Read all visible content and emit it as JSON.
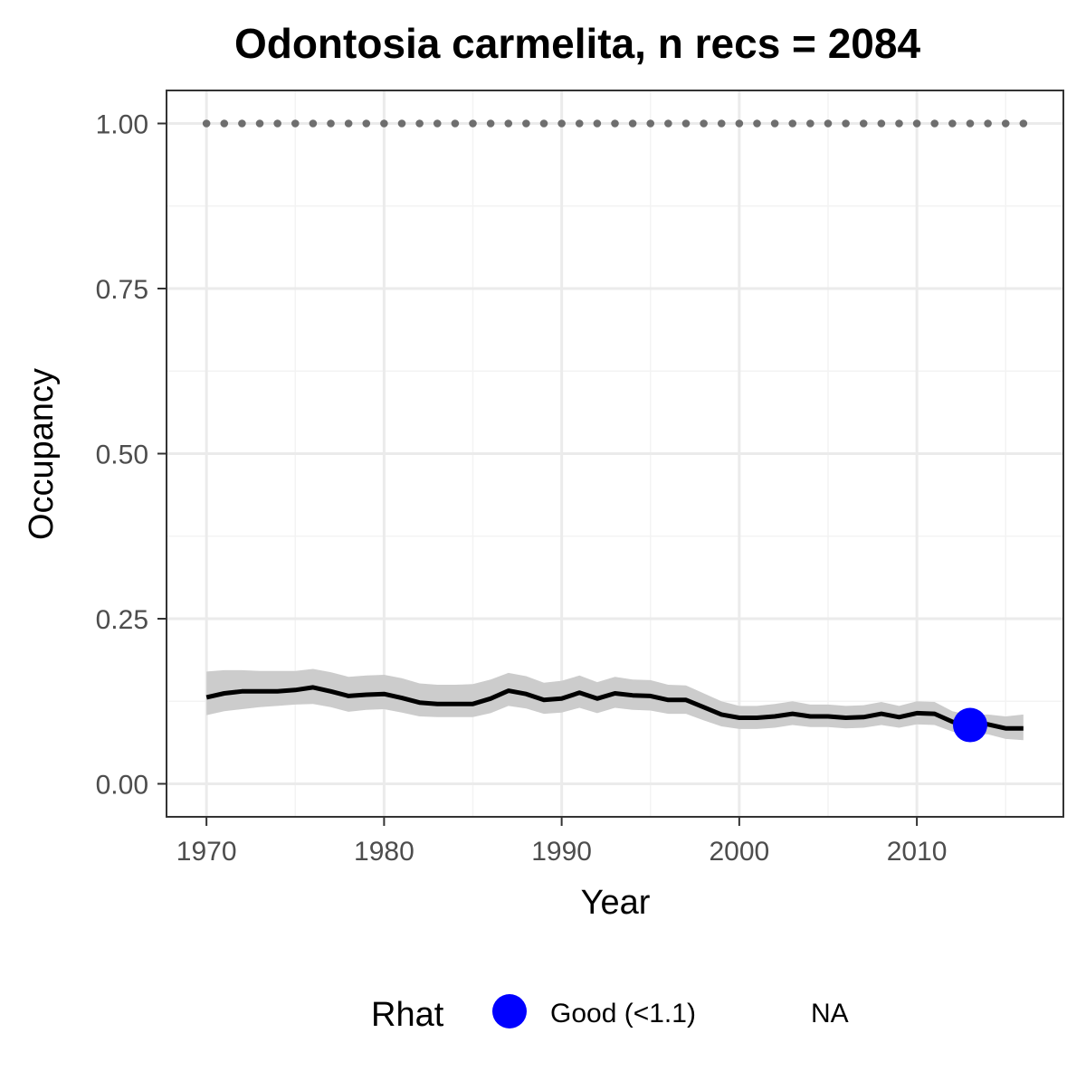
{
  "chart_data": {
    "type": "line",
    "title": "Odontosia carmelita, n recs = 2084",
    "xlabel": "Year",
    "ylabel": "Occupancy",
    "xlim": [
      1967.75,
      2018.25
    ],
    "ylim": [
      -0.05,
      1.05
    ],
    "x_ticks": [
      1970,
      1980,
      1990,
      2000,
      2010
    ],
    "x_tick_labels": [
      "1970",
      "1980",
      "1990",
      "2000",
      "2010"
    ],
    "y_ticks": [
      0,
      0.25,
      0.5,
      0.75,
      1
    ],
    "y_tick_labels": [
      "0.00",
      "0.25",
      "0.50",
      "0.75",
      "1.00"
    ],
    "grid": true,
    "series": [
      {
        "role": "mean-occupancy",
        "color": "#000000",
        "x": [
          1970,
          1971,
          1972,
          1973,
          1974,
          1975,
          1976,
          1977,
          1978,
          1979,
          1980,
          1981,
          1982,
          1983,
          1984,
          1985,
          1986,
          1987,
          1988,
          1989,
          1990,
          1991,
          1992,
          1993,
          1994,
          1995,
          1996,
          1997,
          1998,
          1999,
          2000,
          2001,
          2002,
          2003,
          2004,
          2005,
          2006,
          2007,
          2008,
          2009,
          2010,
          2011,
          2012,
          2013,
          2014,
          2015,
          2016
        ],
        "y": [
          0.131,
          0.137,
          0.14,
          0.14,
          0.14,
          0.142,
          0.146,
          0.14,
          0.133,
          0.135,
          0.136,
          0.13,
          0.123,
          0.121,
          0.121,
          0.121,
          0.129,
          0.141,
          0.136,
          0.127,
          0.129,
          0.138,
          0.129,
          0.137,
          0.134,
          0.133,
          0.127,
          0.127,
          0.116,
          0.105,
          0.1,
          0.1,
          0.102,
          0.106,
          0.102,
          0.102,
          0.1,
          0.101,
          0.106,
          0.101,
          0.107,
          0.106,
          0.094,
          0.089,
          0.09,
          0.084,
          0.084
        ],
        "lower": [
          0.104,
          0.11,
          0.113,
          0.116,
          0.118,
          0.12,
          0.121,
          0.116,
          0.109,
          0.112,
          0.113,
          0.108,
          0.102,
          0.101,
          0.101,
          0.101,
          0.107,
          0.118,
          0.114,
          0.106,
          0.108,
          0.115,
          0.107,
          0.115,
          0.112,
          0.111,
          0.106,
          0.106,
          0.096,
          0.087,
          0.083,
          0.083,
          0.085,
          0.089,
          0.086,
          0.086,
          0.084,
          0.085,
          0.089,
          0.085,
          0.09,
          0.089,
          0.079,
          0.075,
          0.075,
          0.068,
          0.066
        ],
        "upper": [
          0.17,
          0.172,
          0.172,
          0.171,
          0.171,
          0.171,
          0.174,
          0.169,
          0.162,
          0.164,
          0.165,
          0.16,
          0.152,
          0.15,
          0.15,
          0.151,
          0.158,
          0.168,
          0.163,
          0.153,
          0.156,
          0.164,
          0.154,
          0.162,
          0.158,
          0.157,
          0.15,
          0.149,
          0.137,
          0.125,
          0.118,
          0.118,
          0.121,
          0.125,
          0.12,
          0.12,
          0.118,
          0.119,
          0.124,
          0.118,
          0.125,
          0.124,
          0.11,
          0.104,
          0.105,
          0.102,
          0.105
        ]
      },
      {
        "role": "reference-dotted",
        "color": "#6e6e6e",
        "x": [
          1970,
          1971,
          1972,
          1973,
          1974,
          1975,
          1976,
          1977,
          1978,
          1979,
          1980,
          1981,
          1982,
          1983,
          1984,
          1985,
          1986,
          1987,
          1988,
          1989,
          1990,
          1991,
          1992,
          1993,
          1994,
          1995,
          1996,
          1997,
          1998,
          1999,
          2000,
          2001,
          2002,
          2003,
          2004,
          2005,
          2006,
          2007,
          2008,
          2009,
          2010,
          2011,
          2012,
          2013,
          2014,
          2015,
          2016
        ],
        "y": [
          1,
          1,
          1,
          1,
          1,
          1,
          1,
          1,
          1,
          1,
          1,
          1,
          1,
          1,
          1,
          1,
          1,
          1,
          1,
          1,
          1,
          1,
          1,
          1,
          1,
          1,
          1,
          1,
          1,
          1,
          1,
          1,
          1,
          1,
          1,
          1,
          1,
          1,
          1,
          1,
          1,
          1,
          1,
          1,
          1,
          1,
          1
        ]
      }
    ],
    "rhat_points": [
      {
        "x": 2013,
        "y": 0.089,
        "category": "Good (<1.1)",
        "color": "#0000ff"
      }
    ],
    "legend": {
      "title": "Rhat",
      "position": "bottom",
      "entries": [
        {
          "label": "Good (<1.1)",
          "color": "#0000ff"
        },
        {
          "label": "NA",
          "color": ""
        }
      ]
    },
    "colors": {
      "ribbon": "#cccccc",
      "grid_major": "#ebebeb",
      "grid_minor": "#f3f3f3",
      "panel_border": "#333333",
      "tick_text": "#4d4d4d"
    }
  }
}
